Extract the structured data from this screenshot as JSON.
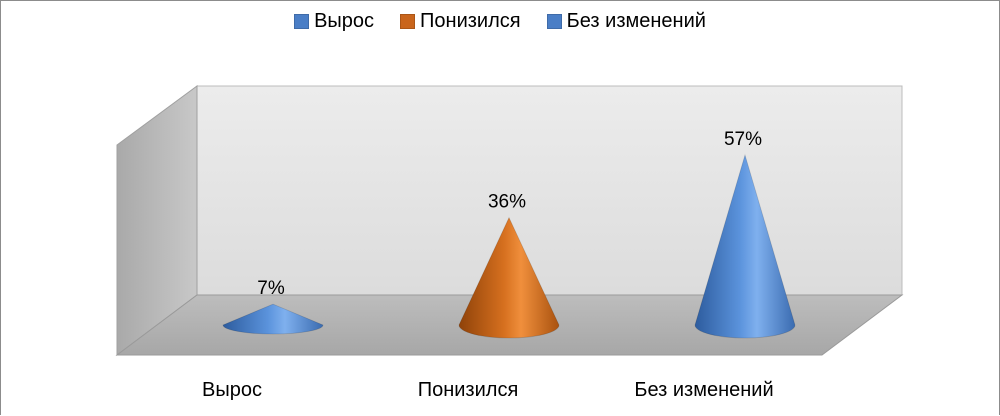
{
  "chart_data": {
    "type": "bar",
    "subtype": "3d-cone",
    "title": "",
    "categories": [
      "Вырос",
      "Понизился",
      "Без изменений"
    ],
    "values": [
      7,
      36,
      57
    ],
    "data_labels": [
      "7%",
      "36%",
      "57%"
    ],
    "colors": [
      "#4a7ec6",
      "#c9651c",
      "#4a7ec6"
    ],
    "ylim": [
      0,
      60
    ],
    "legend": {
      "placement": "top",
      "entries": [
        {
          "label": "Вырос",
          "color": "#4a7ec6"
        },
        {
          "label": "Понизился",
          "color": "#c9651c"
        },
        {
          "label": "Без изменений",
          "color": "#4a7ec6"
        }
      ]
    },
    "grid": false
  }
}
